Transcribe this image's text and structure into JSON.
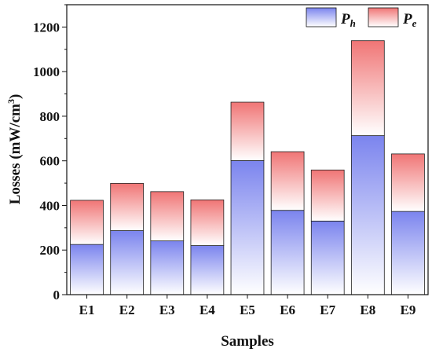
{
  "chart_data": {
    "type": "bar",
    "stacked": true,
    "categories": [
      "E1",
      "E2",
      "E3",
      "E4",
      "E5",
      "E6",
      "E7",
      "E8",
      "E9"
    ],
    "series": [
      {
        "name": "P",
        "subscript": "h",
        "values": [
          225,
          287,
          241,
          220,
          601,
          378,
          330,
          713,
          373
        ],
        "color_top": "#7b84ee",
        "color_bottom": "#ffffff"
      },
      {
        "name": "P",
        "subscript": "e",
        "values": [
          198,
          212,
          221,
          205,
          262,
          263,
          229,
          426,
          258
        ],
        "color_top": "#f07575",
        "color_bottom": "#ffffff"
      }
    ],
    "xlabel": "Samples",
    "ylabel_main": "Losses (mW/cm",
    "ylabel_sup": "3",
    "ylabel_end": ")",
    "ylim": [
      0,
      1300
    ],
    "yticks": [
      0,
      200,
      400,
      600,
      800,
      1000,
      1200
    ],
    "legend_position": "top-right",
    "grid": false
  }
}
